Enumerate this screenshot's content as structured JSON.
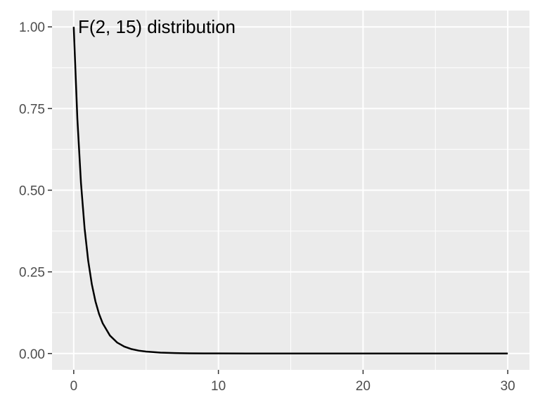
{
  "chart_data": {
    "type": "line",
    "title": "",
    "xlabel": "",
    "ylabel": "",
    "xlim": [
      -1.5,
      31.5
    ],
    "ylim": [
      -0.05,
      1.05
    ],
    "x_ticks": [
      0,
      10,
      20,
      30
    ],
    "x_tick_labels": [
      "0",
      "10",
      "20",
      "30"
    ],
    "y_ticks": [
      0,
      0.25,
      0.5,
      0.75,
      1
    ],
    "y_tick_labels": [
      "0.00",
      "0.25",
      "0.50",
      "0.75",
      "1.00"
    ],
    "grid": true,
    "legend": "none",
    "annotation": {
      "text": "F(2, 15) distribution",
      "x": 0.3,
      "y": 1.0
    },
    "series": [
      {
        "x": [
          0,
          0.25,
          0.5,
          0.75,
          1,
          1.25,
          1.5,
          1.75,
          2,
          2.5,
          3,
          3.5,
          4,
          4.5,
          5,
          6,
          7,
          8,
          9,
          10,
          12,
          15,
          20,
          25,
          30
        ],
        "values": [
          1.0,
          0.7191,
          0.5225,
          0.3835,
          0.284,
          0.2122,
          0.1598,
          0.1213,
          0.0927,
          0.0551,
          0.0336,
          0.0211,
          0.0135,
          0.0088,
          0.0059,
          0.0027,
          0.0013,
          0.0007,
          0.0004,
          0.0002,
          0.0001,
          0.0,
          0.0,
          0.0,
          0.0
        ],
        "color": "#000000"
      }
    ],
    "panel_background": "#ebebeb",
    "grid_color": "#ffffff",
    "tick_color": "#333333"
  }
}
